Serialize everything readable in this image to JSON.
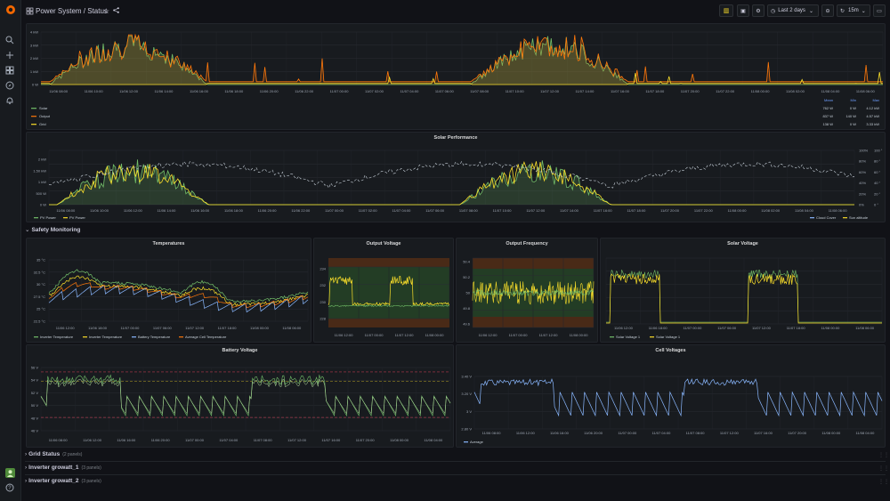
{
  "header": {
    "title_main": "Power System",
    "title_sep": " / ",
    "title_sub": "Status",
    "time_range": "Last 2 days",
    "refresh": "15m"
  },
  "rows": {
    "safety": "Safety Monitoring",
    "grid": "Grid Status",
    "grid_count": "(2 panels)",
    "inv1": "Inverter growatt_1",
    "inv1_count": "(3 panels)",
    "inv2": "Inverter growatt_2",
    "inv2_count": "(3 panels)"
  },
  "panels": {
    "power": {
      "yticks": [
        "4 kW",
        "3 kW",
        "2 kW",
        "1 kW",
        "0 W"
      ],
      "xticks": [
        "11/06 08:00",
        "11/06 10:00",
        "11/06 12:00",
        "11/06 14:00",
        "11/06 16:00",
        "11/06 18:00",
        "11/06 20:00",
        "11/06 22:00",
        "11/07 00:00",
        "11/07 02:00",
        "11/07 04:00",
        "11/07 06:00",
        "11/07 08:00",
        "11/07 10:00",
        "11/07 12:00",
        "11/07 14:00",
        "11/07 16:00",
        "11/07 18:00",
        "11/07 20:00",
        "11/07 22:00",
        "11/08 00:00",
        "11/08 02:00",
        "11/08 04:00",
        "11/08 06:00"
      ],
      "legend_headers": [
        "Mean",
        "Min",
        "Max"
      ],
      "legend": [
        {
          "name": "Solar",
          "color": "#73bf69",
          "mean": "762 W",
          "min": "0 W",
          "max": "4.12 kW"
        },
        {
          "name": "Output",
          "color": "#ff780a",
          "mean": "837 W",
          "min": "140 W",
          "max": "4.57 kW"
        },
        {
          "name": "Grid",
          "color": "#fade2a",
          "mean": "138 W",
          "min": "0 W",
          "max": "3.33 kW"
        }
      ]
    },
    "solar_perf": {
      "title": "Solar Performance",
      "yticks": [
        "2 kW",
        "1.50 kW",
        "1 kW",
        "500 W",
        "0 W"
      ],
      "yticks_right_pct": [
        "100%",
        "80%",
        "60%",
        "40%",
        "20%",
        "0%"
      ],
      "yticks_right_deg": [
        "100 °",
        "80 °",
        "60 °",
        "40 °",
        "20 °",
        "0 °"
      ],
      "xticks": [
        "11/06 08:00",
        "11/06 10:00",
        "11/06 12:00",
        "11/06 14:00",
        "11/06 16:00",
        "11/06 18:00",
        "11/06 20:00",
        "11/06 22:00",
        "11/07 00:00",
        "11/07 02:00",
        "11/07 04:00",
        "11/07 06:00",
        "11/07 08:00",
        "11/07 10:00",
        "11/07 12:00",
        "11/07 14:00",
        "11/07 16:00",
        "11/07 18:00",
        "11/07 20:00",
        "11/07 22:00",
        "11/08 00:00",
        "11/08 02:00",
        "11/08 04:00",
        "11/08 06:00"
      ],
      "legend_left": [
        {
          "name": "PV Power",
          "color": "#73bf69"
        },
        {
          "name": "PV Power",
          "color": "#fade2a"
        }
      ],
      "legend_right": [
        {
          "name": "Cloud Cover",
          "color": "#8ab8ff"
        },
        {
          "name": "Sun altitude",
          "color": "#fade2a"
        }
      ]
    },
    "temps": {
      "title": "Temperatures",
      "yticks": [
        "35 °C",
        "32.5 °C",
        "30 °C",
        "27.5 °C",
        "25 °C",
        "22.5 °C"
      ],
      "xticks": [
        "11/06 12:00",
        "11/06 18:00",
        "11/07 00:00",
        "11/07 06:00",
        "11/07 12:00",
        "11/07 18:00",
        "11/08 00:00",
        "11/08 06:00"
      ],
      "legend": [
        {
          "name": "Inverter Temperature",
          "color": "#73bf69"
        },
        {
          "name": "Inverter Temperature",
          "color": "#fade2a"
        },
        {
          "name": "Battery Temperature",
          "color": "#8ab8ff"
        },
        {
          "name": "Average Cell Temperature",
          "color": "#ff780a"
        }
      ]
    },
    "out_voltage": {
      "title": "Output Voltage",
      "yticks": [
        "234",
        "232",
        "230",
        "228"
      ],
      "xticks": [
        "11/06 12:00",
        "11/07 00:00",
        "11/07 12:00",
        "11/08 00:00"
      ]
    },
    "out_freq": {
      "title": "Output Frequency",
      "yticks": [
        "50.4",
        "50.2",
        "50",
        "49.8",
        "49.6"
      ],
      "xticks": [
        "11/06 12:00",
        "11/07 00:00",
        "11/07 12:00",
        "11/08 00:00"
      ]
    },
    "solar_voltage": {
      "title": "Solar Voltage",
      "xticks": [
        "11/06 12:00",
        "11/06 18:00",
        "11/07 00:00",
        "11/07 06:00",
        "11/07 12:00",
        "11/07 18:00",
        "11/08 00:00",
        "11/08 06:00"
      ],
      "legend": [
        {
          "name": "Solar Voltage 1",
          "color": "#73bf69"
        },
        {
          "name": "Solar Voltage 1",
          "color": "#fade2a"
        }
      ]
    },
    "battery": {
      "title": "Battery Voltage",
      "yticks": [
        "56 V",
        "54 V",
        "52 V",
        "50 V",
        "48 V",
        "46 V"
      ],
      "xticks": [
        "11/06 08:00",
        "11/06 12:00",
        "11/06 16:00",
        "11/06 20:00",
        "11/07 00:00",
        "11/07 04:00",
        "11/07 08:00",
        "11/07 12:00",
        "11/07 16:00",
        "11/07 20:00",
        "11/08 00:00",
        "11/08 04:00"
      ]
    },
    "cells": {
      "title": "Cell Voltages",
      "yticks": [
        "3.40 V",
        "3.20 V",
        "3 V",
        "2.80 V"
      ],
      "xticks": [
        "11/06 08:00",
        "11/06 12:00",
        "11/06 16:00",
        "11/06 20:00",
        "11/07 00:00",
        "11/07 04:00",
        "11/07 08:00",
        "11/07 12:00",
        "11/07 16:00",
        "11/07 20:00",
        "11/08 00:00",
        "11/08 04:00"
      ],
      "legend": [
        {
          "name": "Average",
          "color": "#8ab8ff"
        }
      ]
    }
  },
  "colors": {
    "green": "#73bf69",
    "orange": "#ff780a",
    "yellow": "#fade2a",
    "blue": "#8ab8ff",
    "red": "#f2495c"
  }
}
